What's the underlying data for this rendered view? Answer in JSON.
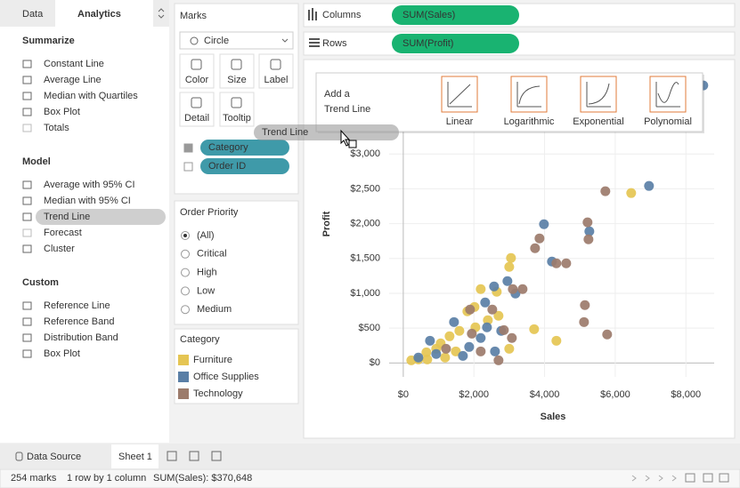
{
  "tabs": [
    "Data",
    "Analytics"
  ],
  "analytics": [
    {
      "title": "Summarize",
      "items": [
        "Constant Line",
        "Average Line",
        "Median with Quartiles",
        "Box Plot",
        "Totals"
      ]
    },
    {
      "title": "Model",
      "items": [
        "Average with 95% CI",
        "Median with 95% CI",
        "Trend Line",
        "Forecast",
        "Cluster"
      ]
    },
    {
      "title": "Custom",
      "items": [
        "Reference Line",
        "Reference Band",
        "Distribution Band",
        "Box Plot"
      ]
    }
  ],
  "marks": {
    "title": "Marks",
    "mark_type": "Circle",
    "buttons": [
      "Color",
      "Size",
      "Label",
      "Detail",
      "Tooltip"
    ],
    "pills": [
      "Category",
      "Order ID"
    ]
  },
  "filter": {
    "title": "Order Priority",
    "options": [
      "(All)",
      "Critical",
      "High",
      "Low",
      "Medium"
    ]
  },
  "legend_title": "Category",
  "shelves": {
    "columns_label": "Columns",
    "columns_pill": "SUM(Sales)",
    "rows_label": "Rows",
    "rows_pill": "SUM(Profit)"
  },
  "popup": {
    "line1": "Add a",
    "line2": "Trend Line",
    "options": [
      "Linear",
      "Logarithmic",
      "Exponential",
      "Polynomial"
    ]
  },
  "drag_ghost": "Trend Line",
  "bottom_tabs": [
    "Data Source",
    "Sheet 1"
  ],
  "status": [
    "254 marks",
    "1 row by 1 column",
    "SUM(Sales): $370,648"
  ],
  "chart_data": {
    "type": "scatter",
    "x_label": "Sales",
    "y_label": "Profit",
    "xlim": [
      -400,
      8800
    ],
    "ylim": [
      -200,
      4100
    ],
    "xticks": [
      {
        "value": 0,
        "label": "$0"
      },
      {
        "value": 2000,
        "label": "$2,000"
      },
      {
        "value": 4000,
        "label": "$4,000"
      },
      {
        "value": 6000,
        "label": "$6,000"
      },
      {
        "value": 8000,
        "label": "$8,000"
      }
    ],
    "yticks": [
      {
        "value": 0,
        "label": "$0"
      },
      {
        "value": 500,
        "label": "$500"
      },
      {
        "value": 1000,
        "label": "$1,000"
      },
      {
        "value": 1500,
        "label": "$1,500"
      },
      {
        "value": 2000,
        "label": "$2,000"
      },
      {
        "value": 2500,
        "label": "$2,500"
      },
      {
        "value": 3000,
        "label": "$3,000"
      }
    ],
    "grid": true,
    "series": [
      {
        "name": "Furniture",
        "color": "#e5c553",
        "x": [
          6451,
          3049,
          2999,
          2646,
          2696,
          2192,
          2016,
          1814,
          1588,
          1310,
          1058,
          932,
          655,
          428,
          227,
          3704,
          4334,
          2999,
          2394,
          1487,
          1184,
          680,
          2041
        ],
        "values": [
          2439,
          1507,
          1379,
          1022,
          677,
          1060,
          804,
          741,
          460,
          383,
          281,
          204,
          153,
          51,
          38,
          485,
          319,
          204,
          613,
          166,
          77,
          51,
          511
        ]
      },
      {
        "name": "Office Supplies",
        "color": "#5a7fa6",
        "x": [
          6955,
          8492,
          5267,
          3982,
          4208,
          2948,
          3175,
          2570,
          2318,
          2192,
          1865,
          1436,
          1688,
          932,
          428,
          756,
          2596,
          2772,
          2369
        ],
        "values": [
          2541,
          3984,
          1890,
          1992,
          1456,
          1175,
          996,
          1098,
          868,
          358,
          230,
          587,
          102,
          128,
          77,
          319,
          166,
          460,
          511
        ]
      },
      {
        "name": "Technology",
        "color": "#9c7b6b",
        "x": [
          5720,
          5216,
          5242,
          3856,
          3730,
          4334,
          4612,
          5141,
          5771,
          5116,
          3377,
          3100,
          2848,
          3074,
          1890,
          2520,
          2192,
          2696,
          1210,
          1940
        ],
        "values": [
          2465,
          2018,
          1775,
          1788,
          1647,
          1430,
          1430,
          830,
          409,
          587,
          1060,
          1060,
          472,
          358,
          766,
          766,
          166,
          38,
          204,
          421
        ]
      }
    ]
  }
}
